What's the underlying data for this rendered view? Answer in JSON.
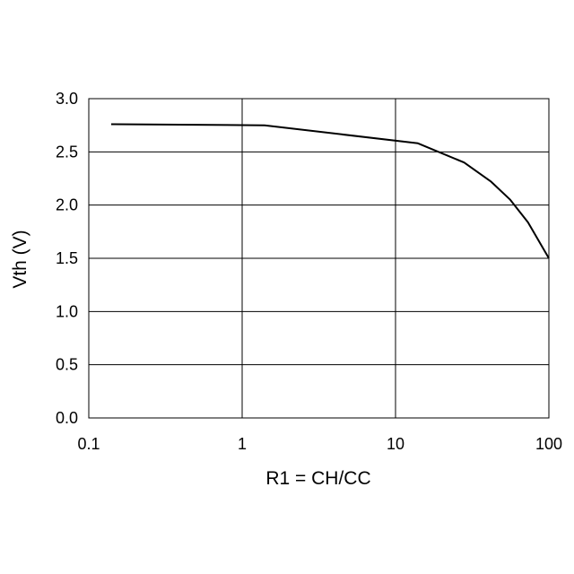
{
  "chart_data": {
    "type": "line",
    "title": "",
    "xlabel": "R1 = CH/CC",
    "ylabel": "Vth (V)",
    "xscale": "log",
    "xlim": [
      0.1,
      100
    ],
    "ylim": [
      0.0,
      3.0
    ],
    "grid": true,
    "legend": "none",
    "x_ticks": [
      {
        "value": 0.1,
        "label": "0.1"
      },
      {
        "value": 1,
        "label": "1"
      },
      {
        "value": 10,
        "label": "10"
      },
      {
        "value": 100,
        "label": "100"
      }
    ],
    "y_ticks": [
      {
        "value": 0.0,
        "label": "0.0"
      },
      {
        "value": 0.5,
        "label": "0.5"
      },
      {
        "value": 1.0,
        "label": "1.0"
      },
      {
        "value": 1.5,
        "label": "1.5"
      },
      {
        "value": 2.0,
        "label": "2.0"
      },
      {
        "value": 2.5,
        "label": "2.5"
      },
      {
        "value": 3.0,
        "label": "3.0"
      }
    ],
    "series": [
      {
        "color": "#000000",
        "points": [
          {
            "x": 0.14,
            "y": 2.76
          },
          {
            "x": 1.4,
            "y": 2.75
          },
          {
            "x": 14,
            "y": 2.58
          },
          {
            "x": 28,
            "y": 2.4
          },
          {
            "x": 42,
            "y": 2.22
          },
          {
            "x": 56,
            "y": 2.05
          },
          {
            "x": 73,
            "y": 1.84
          },
          {
            "x": 100,
            "y": 1.5
          }
        ]
      }
    ]
  }
}
